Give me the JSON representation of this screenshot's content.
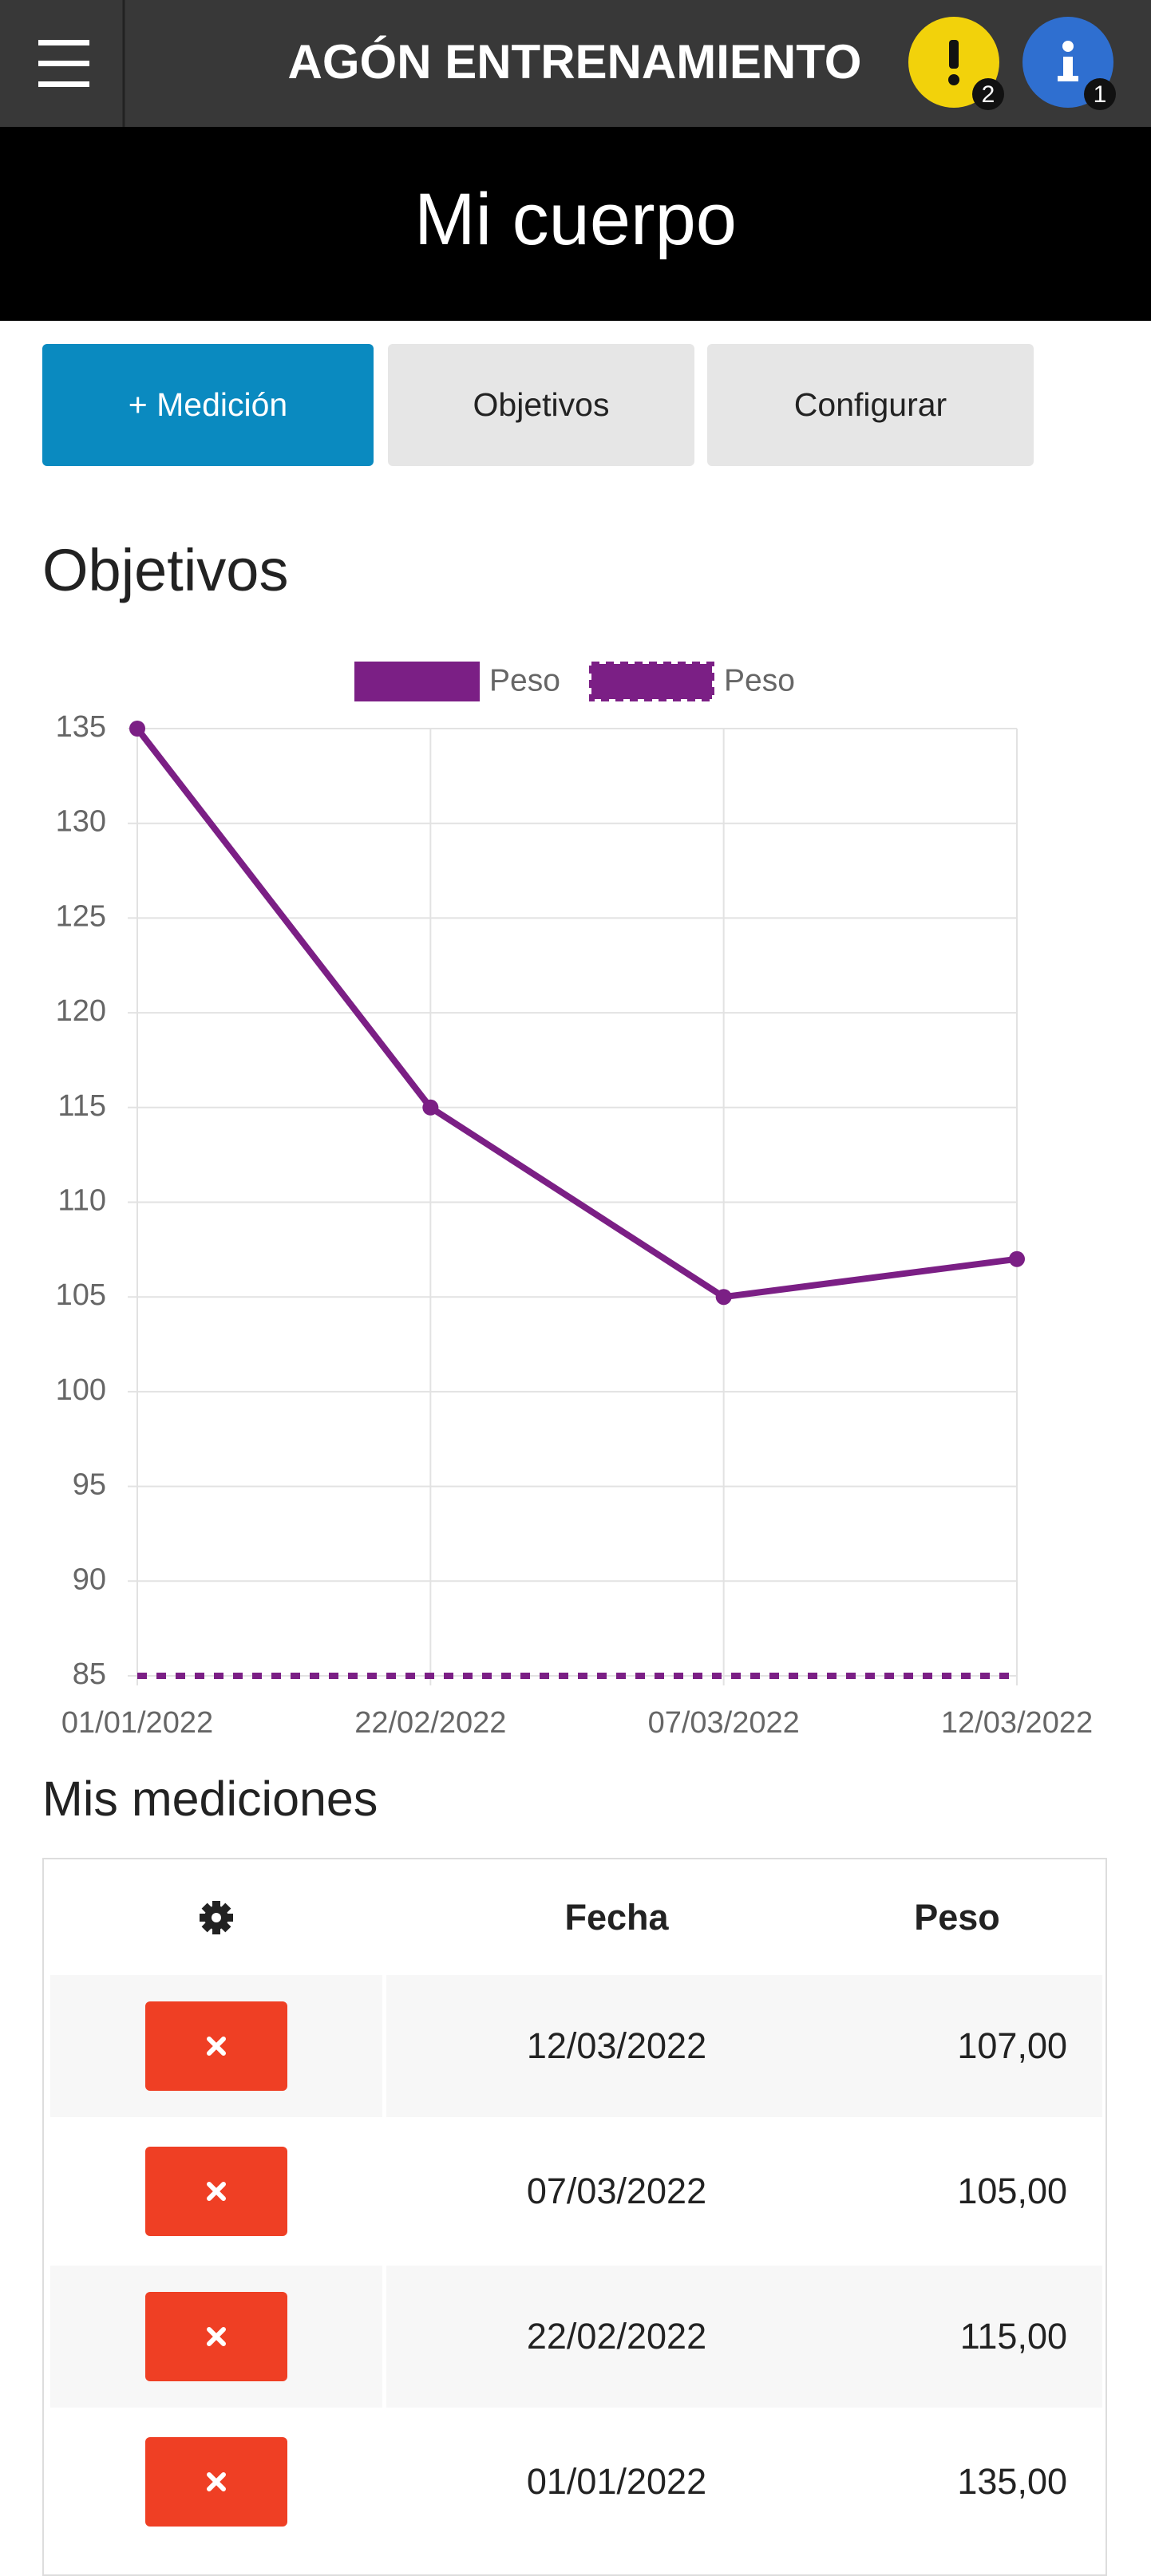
{
  "header": {
    "title": "AGÓN ENTRENAMIENTO",
    "alert_count": "2",
    "info_count": "1"
  },
  "banner": {
    "title": "Mi cuerpo"
  },
  "buttons": [
    "+ Medición",
    "Objetivos",
    "Configurar"
  ],
  "section_title": "Objetivos",
  "chart_data": {
    "type": "line",
    "categories": [
      "01/01/2022",
      "22/02/2022",
      "07/03/2022",
      "12/03/2022"
    ],
    "series": [
      {
        "name": "Peso",
        "color": "#7b1f85",
        "values": [
          135,
          115,
          105,
          107
        ],
        "style": "solid",
        "points": true
      },
      {
        "name": "Peso",
        "color": "#7b1f85",
        "values": [
          85,
          85,
          85,
          85
        ],
        "style": "dashed",
        "points": false
      }
    ],
    "ylim": [
      85,
      135
    ],
    "yticks": [
      85,
      90,
      95,
      100,
      105,
      110,
      115,
      120,
      125,
      130,
      135
    ],
    "grid": true,
    "legend": "top"
  },
  "table": {
    "title": "Mis mediciones",
    "headers": [
      "Fecha",
      "Peso"
    ],
    "rows": [
      [
        "12/03/2022",
        "107,00"
      ],
      [
        "07/03/2022",
        "105,00"
      ],
      [
        "22/02/2022",
        "115,00"
      ],
      [
        "01/01/2022",
        "135,00"
      ]
    ]
  }
}
